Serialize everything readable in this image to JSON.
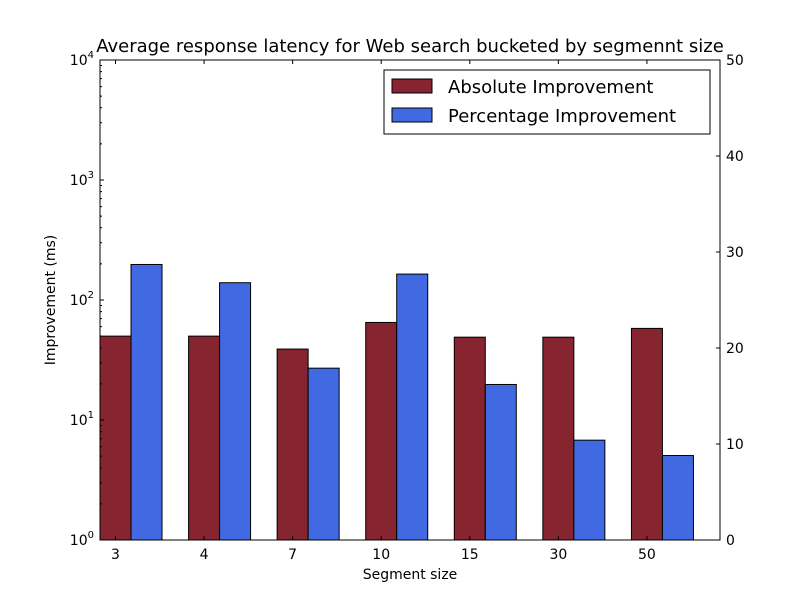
{
  "chart_data": {
    "type": "bar",
    "title": "Average response latency for Web search bucketed by segmennt size",
    "xlabel": "Segment size",
    "ylabel": "Improvement (ms)",
    "y2label": "",
    "categories": [
      "3",
      "4",
      "7",
      "10",
      "15",
      "30",
      "50"
    ],
    "series": [
      {
        "name": "Absolute Improvement",
        "axis": "left",
        "scale": "log",
        "color": "#86252f",
        "values": [
          50,
          50,
          39,
          65,
          49,
          49,
          58
        ]
      },
      {
        "name": "Percentage Improvement",
        "axis": "right",
        "scale": "linear",
        "color": "#4169e1",
        "values": [
          28.7,
          26.8,
          17.9,
          27.7,
          16.2,
          10.4,
          8.8
        ]
      }
    ],
    "y_left": {
      "scale": "log",
      "range": [
        1,
        10000
      ],
      "ticks": [
        1,
        10,
        100,
        1000,
        10000
      ],
      "tick_labels": [
        {
          "base": "10",
          "exp": "0"
        },
        {
          "base": "10",
          "exp": "1"
        },
        {
          "base": "10",
          "exp": "2"
        },
        {
          "base": "10",
          "exp": "3"
        },
        {
          "base": "10",
          "exp": "4"
        }
      ]
    },
    "y_right": {
      "scale": "linear",
      "range": [
        0,
        50
      ],
      "ticks": [
        0,
        10,
        20,
        30,
        40,
        50
      ],
      "tick_labels": [
        "0",
        "10",
        "20",
        "30",
        "40",
        "50"
      ]
    },
    "legend": {
      "placement": "top-right"
    },
    "grid": false
  }
}
